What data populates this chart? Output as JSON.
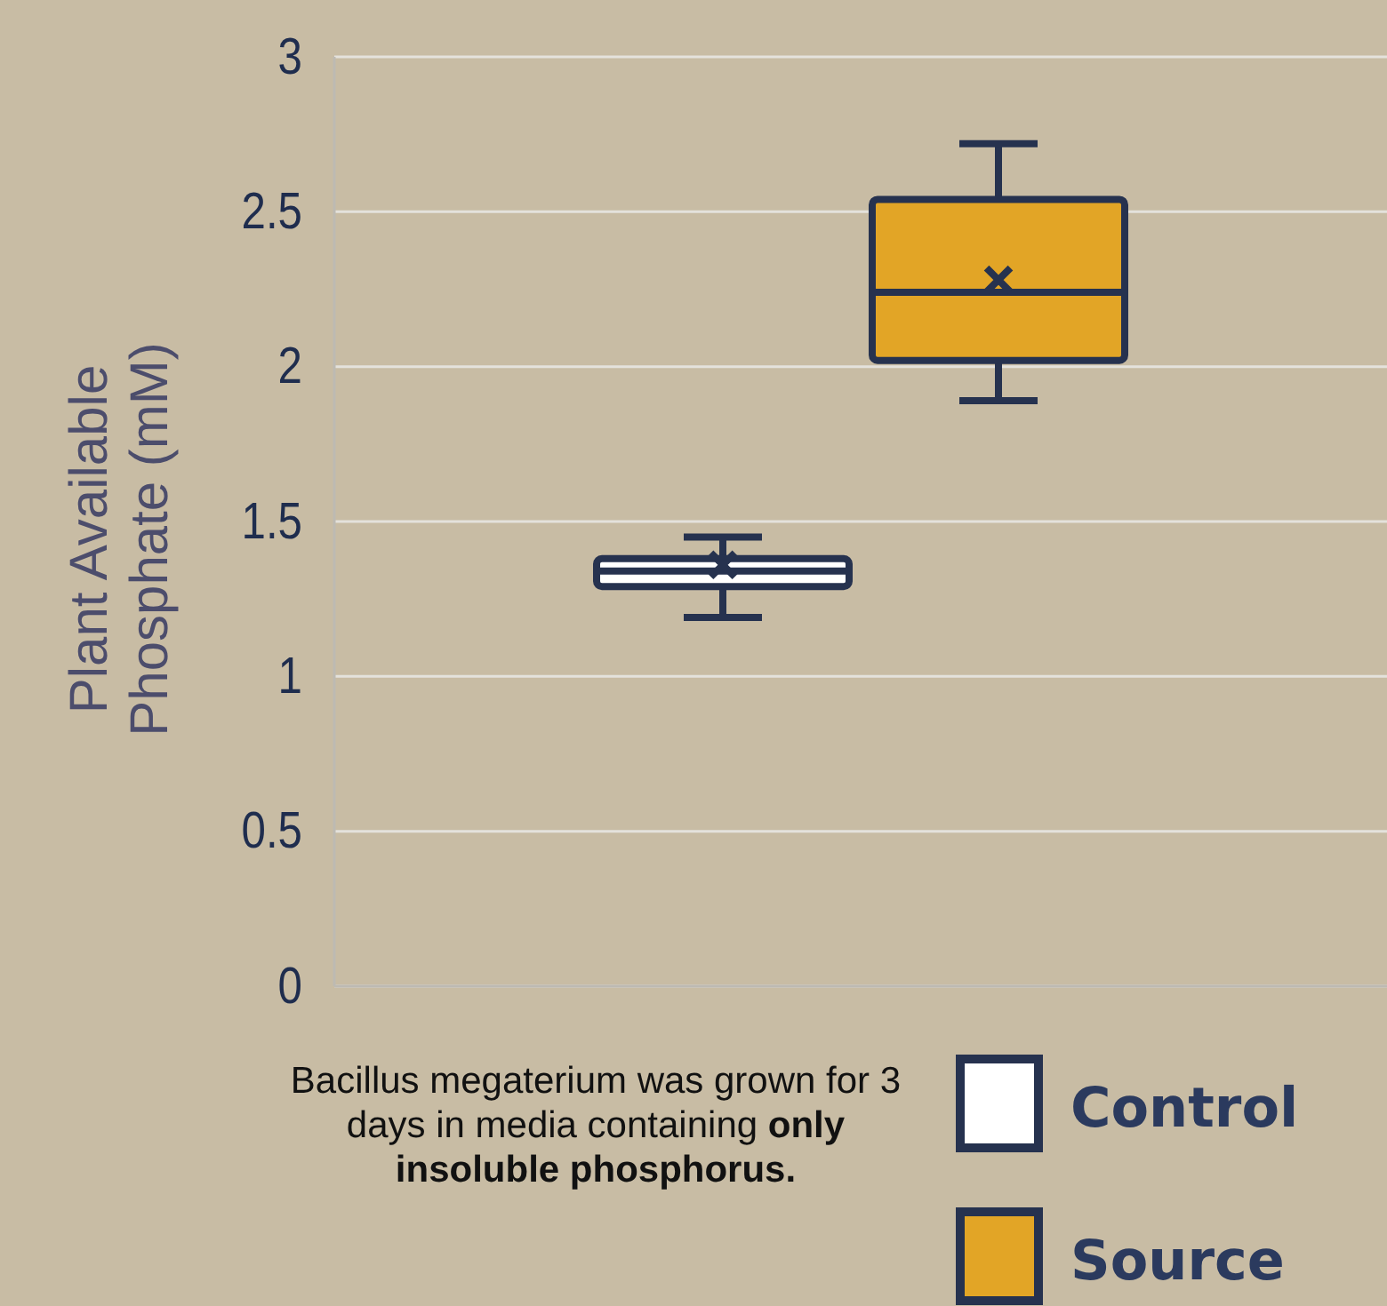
{
  "chart_data": {
    "type": "box",
    "ylabel": "Plant Available Phosphate (mM)",
    "categories": [
      null
    ],
    "series": [
      {
        "name": "Control",
        "color": "#ffffff",
        "boxes": [
          {
            "low": 1.19,
            "q1": 1.29,
            "median": 1.34,
            "q3": 1.38,
            "high": 1.45,
            "mean": 1.36
          }
        ]
      },
      {
        "name": "Source",
        "color": "#e2a526",
        "boxes": [
          {
            "low": 1.89,
            "q1": 2.02,
            "median": 2.24,
            "q3": 2.54,
            "high": 2.72,
            "mean": 2.28
          }
        ]
      }
    ],
    "ylim": [
      0,
      3
    ],
    "yticks": [
      0,
      0.5,
      1,
      1.5,
      2,
      2.5,
      3
    ],
    "grid": "y",
    "legend": "bottom right",
    "marker": "cross",
    "annotations": [
      "Bacillus megaterium was grown for 3 days in media containing",
      "only insoluble phosphorus."
    ]
  }
}
